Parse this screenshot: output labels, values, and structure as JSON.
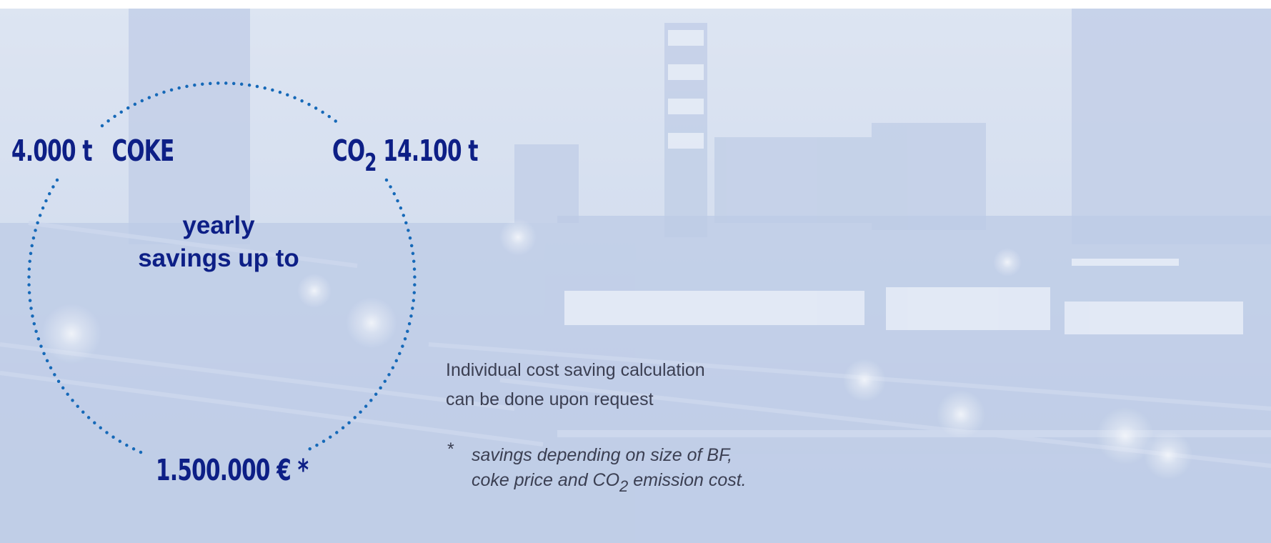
{
  "coke": {
    "value": "4.000 t",
    "label": "COKE"
  },
  "co2": {
    "prefix": "CO",
    "subscript": "2",
    "value": "14.100 t"
  },
  "money": {
    "value": "1.500.000 € *"
  },
  "center": {
    "line1": "yearly",
    "line2": "savings up to"
  },
  "note": {
    "line1": "Individual cost saving calculation",
    "line2": "can be done upon request"
  },
  "footnote": {
    "marker": "*",
    "line1": "savings depending on size of BF,",
    "line2_before": "coke price and CO",
    "line2_sub": "2",
    "line2_after": " emission cost."
  },
  "colors": {
    "accent": "#0d1f86",
    "dots": "#1669b8",
    "body_text": "#3b3f52"
  },
  "icons": {
    "circle": "dotted-circle"
  }
}
